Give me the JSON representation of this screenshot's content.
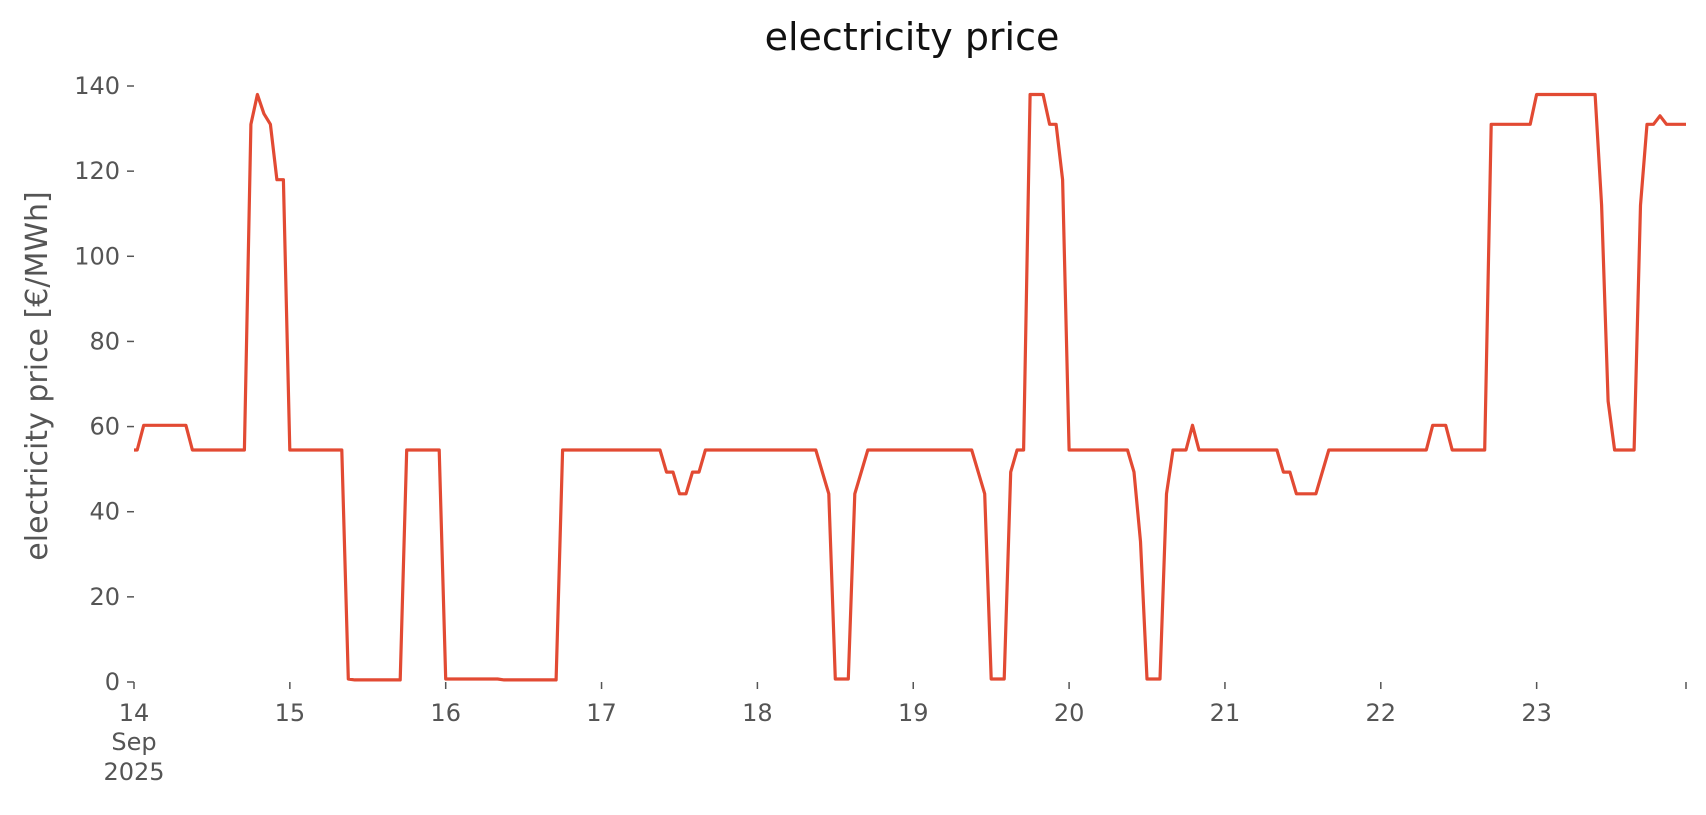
{
  "chart_data": {
    "type": "line",
    "title": "electricity price",
    "xlabel": "",
    "ylabel": "electricity price [€/MWh]",
    "x_is_datetime": true,
    "xlim": [
      "2025-09-14T00:00",
      "2025-09-23T23:00"
    ],
    "ylim": [
      0,
      140
    ],
    "grid": false,
    "yticks": [
      0,
      20,
      40,
      60,
      80,
      100,
      120,
      140
    ],
    "xtick_labels": [
      {
        "date": "2025-09-14T00:00",
        "label": "14",
        "sub": [
          "Sep",
          "2025"
        ]
      },
      {
        "date": "2025-09-15T00:00",
        "label": "15"
      },
      {
        "date": "2025-09-16T00:00",
        "label": "16"
      },
      {
        "date": "2025-09-17T00:00",
        "label": "17"
      },
      {
        "date": "2025-09-18T00:00",
        "label": "18"
      },
      {
        "date": "2025-09-19T00:00",
        "label": "19"
      },
      {
        "date": "2025-09-20T00:00",
        "label": "20"
      },
      {
        "date": "2025-09-21T00:00",
        "label": "21"
      },
      {
        "date": "2025-09-22T00:00",
        "label": "22"
      },
      {
        "date": "2025-09-23T00:00",
        "label": "23"
      },
      {
        "date": "2025-09-23T23:00",
        "label": ""
      }
    ],
    "series": [
      {
        "color": "#e24a33",
        "points": [
          [
            "2025-09-14T00:00",
            54.5
          ],
          [
            "2025-09-14T00:30",
            54.5
          ],
          [
            "2025-09-14T01:30",
            60.3
          ],
          [
            "2025-09-14T08:00",
            60.3
          ],
          [
            "2025-09-14T09:00",
            54.5
          ],
          [
            "2025-09-14T17:00",
            54.5
          ],
          [
            "2025-09-14T18:00",
            131
          ],
          [
            "2025-09-14T19:00",
            138
          ],
          [
            "2025-09-14T20:00",
            133.5
          ],
          [
            "2025-09-14T21:00",
            131
          ],
          [
            "2025-09-14T22:00",
            118
          ],
          [
            "2025-09-14T23:00",
            118
          ],
          [
            "2025-09-15T00:00",
            54.5
          ],
          [
            "2025-09-15T08:00",
            54.5
          ],
          [
            "2025-09-15T09:00",
            0.7
          ],
          [
            "2025-09-15T10:00",
            0.5
          ],
          [
            "2025-09-15T17:00",
            0.5
          ],
          [
            "2025-09-15T18:00",
            54.5
          ],
          [
            "2025-09-15T23:00",
            54.5
          ],
          [
            "2025-09-16T00:00",
            0.7
          ],
          [
            "2025-09-16T08:00",
            0.7
          ],
          [
            "2025-09-16T09:00",
            0.5
          ],
          [
            "2025-09-16T17:00",
            0.5
          ],
          [
            "2025-09-16T18:00",
            54.5
          ],
          [
            "2025-09-17T09:00",
            54.5
          ],
          [
            "2025-09-17T10:00",
            49.3
          ],
          [
            "2025-09-17T11:00",
            49.3
          ],
          [
            "2025-09-17T12:00",
            44.2
          ],
          [
            "2025-09-17T13:00",
            44.2
          ],
          [
            "2025-09-17T14:00",
            49.3
          ],
          [
            "2025-09-17T15:00",
            49.3
          ],
          [
            "2025-09-17T16:00",
            54.5
          ],
          [
            "2025-09-18T09:00",
            54.5
          ],
          [
            "2025-09-18T11:00",
            44.2
          ],
          [
            "2025-09-18T12:00",
            0.7
          ],
          [
            "2025-09-18T14:00",
            0.7
          ],
          [
            "2025-09-18T15:00",
            44.2
          ],
          [
            "2025-09-18T17:00",
            54.5
          ],
          [
            "2025-09-19T09:00",
            54.5
          ],
          [
            "2025-09-19T11:00",
            44.2
          ],
          [
            "2025-09-19T12:00",
            0.7
          ],
          [
            "2025-09-19T14:00",
            0.7
          ],
          [
            "2025-09-19T15:00",
            49.3
          ],
          [
            "2025-09-19T16:00",
            54.5
          ],
          [
            "2025-09-19T17:00",
            54.5
          ],
          [
            "2025-09-19T18:00",
            138
          ],
          [
            "2025-09-19T20:00",
            138
          ],
          [
            "2025-09-19T21:00",
            131
          ],
          [
            "2025-09-19T22:00",
            131
          ],
          [
            "2025-09-19T23:00",
            118
          ],
          [
            "2025-09-20T00:00",
            54.5
          ],
          [
            "2025-09-20T09:00",
            54.5
          ],
          [
            "2025-09-20T10:00",
            49.3
          ],
          [
            "2025-09-20T11:00",
            33
          ],
          [
            "2025-09-20T12:00",
            0.7
          ],
          [
            "2025-09-20T14:00",
            0.7
          ],
          [
            "2025-09-20T15:00",
            44.2
          ],
          [
            "2025-09-20T16:00",
            54.5
          ],
          [
            "2025-09-20T18:00",
            54.5
          ],
          [
            "2025-09-20T19:00",
            60.3
          ],
          [
            "2025-09-20T20:00",
            54.5
          ],
          [
            "2025-09-21T08:00",
            54.5
          ],
          [
            "2025-09-21T09:00",
            49.3
          ],
          [
            "2025-09-21T10:00",
            49.3
          ],
          [
            "2025-09-21T11:00",
            44.2
          ],
          [
            "2025-09-21T14:00",
            44.2
          ],
          [
            "2025-09-21T16:00",
            54.5
          ],
          [
            "2025-09-22T07:00",
            54.5
          ],
          [
            "2025-09-22T08:00",
            60.3
          ],
          [
            "2025-09-22T10:00",
            60.3
          ],
          [
            "2025-09-22T11:00",
            54.5
          ],
          [
            "2025-09-22T16:00",
            54.5
          ],
          [
            "2025-09-22T17:00",
            131
          ],
          [
            "2025-09-22T23:00",
            131
          ],
          [
            "2025-09-23T00:00",
            138
          ],
          [
            "2025-09-23T09:00",
            138
          ],
          [
            "2025-09-23T10:00",
            112
          ],
          [
            "2025-09-23T11:00",
            66
          ],
          [
            "2025-09-23T12:00",
            54.5
          ],
          [
            "2025-09-23T15:00",
            54.5
          ],
          [
            "2025-09-23T16:00",
            112
          ],
          [
            "2025-09-23T17:00",
            131
          ],
          [
            "2025-09-23T18:00",
            131
          ],
          [
            "2025-09-23T19:00",
            133
          ],
          [
            "2025-09-23T20:00",
            131
          ],
          [
            "2025-09-23T23:00",
            131
          ]
        ]
      }
    ]
  }
}
